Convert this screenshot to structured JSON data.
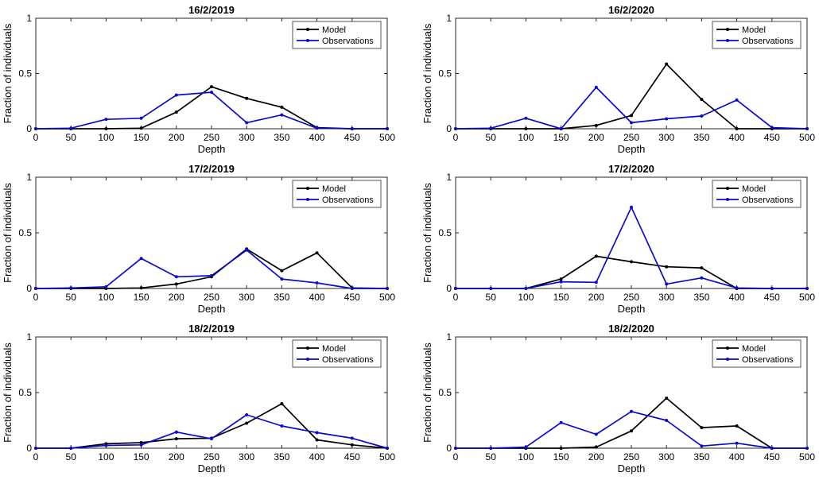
{
  "chart_data": [
    {
      "type": "line",
      "title": "16/2/2019",
      "xlabel": "Depth",
      "ylabel": "Fraction of individuals",
      "xlim": [
        0,
        500
      ],
      "ylim": [
        0,
        1
      ],
      "x": [
        0,
        50,
        100,
        150,
        200,
        250,
        300,
        350,
        400,
        450,
        500
      ],
      "xticks": [
        "0",
        "50",
        "100",
        "150",
        "200",
        "250",
        "300",
        "350",
        "400",
        "450",
        "500"
      ],
      "yticks": [
        "0",
        "0.5",
        "1"
      ],
      "legend_position": "top-right",
      "series": [
        {
          "name": "Model",
          "color": "#000000",
          "values": [
            0,
            0,
            0,
            0.005,
            0.15,
            0.38,
            0.275,
            0.195,
            0.01,
            0,
            0
          ]
        },
        {
          "name": "Observations",
          "color": "#0a0acc",
          "values": [
            0,
            0.005,
            0.085,
            0.095,
            0.305,
            0.33,
            0.055,
            0.125,
            0.005,
            0,
            0
          ]
        }
      ]
    },
    {
      "type": "line",
      "title": "16/2/2020",
      "xlabel": "Depth",
      "ylabel": "Fraction of individuals",
      "xlim": [
        0,
        500
      ],
      "ylim": [
        0,
        1
      ],
      "x": [
        0,
        50,
        100,
        150,
        200,
        250,
        300,
        350,
        400,
        450,
        500
      ],
      "xticks": [
        "0",
        "50",
        "100",
        "150",
        "200",
        "250",
        "300",
        "350",
        "400",
        "450",
        "500"
      ],
      "yticks": [
        "0",
        "0.5",
        "1"
      ],
      "legend_position": "top-right",
      "series": [
        {
          "name": "Model",
          "color": "#000000",
          "values": [
            0,
            0,
            0,
            0,
            0.03,
            0.12,
            0.585,
            0.265,
            0,
            0,
            0
          ]
        },
        {
          "name": "Observations",
          "color": "#0a0acc",
          "values": [
            0,
            0.005,
            0.095,
            0,
            0.375,
            0.055,
            0.09,
            0.115,
            0.26,
            0.01,
            0
          ]
        }
      ]
    },
    {
      "type": "line",
      "title": "17/2/2019",
      "xlabel": "Depth",
      "ylabel": "Fraction of individuals",
      "xlim": [
        0,
        500
      ],
      "ylim": [
        0,
        1
      ],
      "x": [
        0,
        50,
        100,
        150,
        200,
        250,
        300,
        350,
        400,
        450,
        500
      ],
      "xticks": [
        "0",
        "50",
        "100",
        "150",
        "200",
        "250",
        "300",
        "350",
        "400",
        "450",
        "500"
      ],
      "yticks": [
        "0",
        "0.5",
        "1"
      ],
      "legend_position": "top-right",
      "series": [
        {
          "name": "Model",
          "color": "#000000",
          "values": [
            0,
            0,
            0,
            0.005,
            0.04,
            0.105,
            0.355,
            0.16,
            0.32,
            0.005,
            0
          ]
        },
        {
          "name": "Observations",
          "color": "#0a0acc",
          "values": [
            0,
            0.005,
            0.015,
            0.27,
            0.105,
            0.115,
            0.345,
            0.085,
            0.05,
            0,
            0
          ]
        }
      ]
    },
    {
      "type": "line",
      "title": "17/2/2020",
      "xlabel": "Depth",
      "ylabel": "Fraction of individuals",
      "xlim": [
        0,
        500
      ],
      "ylim": [
        0,
        1
      ],
      "x": [
        0,
        50,
        100,
        150,
        200,
        250,
        300,
        350,
        400,
        450,
        500
      ],
      "xticks": [
        "0",
        "50",
        "100",
        "150",
        "200",
        "250",
        "300",
        "350",
        "400",
        "450",
        "500"
      ],
      "yticks": [
        "0",
        "0.5",
        "1"
      ],
      "legend_position": "top-right",
      "series": [
        {
          "name": "Model",
          "color": "#000000",
          "values": [
            0,
            0,
            0,
            0.085,
            0.29,
            0.24,
            0.195,
            0.185,
            0,
            0,
            0
          ]
        },
        {
          "name": "Observations",
          "color": "#0a0acc",
          "values": [
            0,
            0,
            0,
            0.06,
            0.055,
            0.73,
            0.04,
            0.095,
            0.005,
            0,
            0
          ]
        }
      ]
    },
    {
      "type": "line",
      "title": "18/2/2019",
      "xlabel": "Depth",
      "ylabel": "Fraction of individuals",
      "xlim": [
        0,
        500
      ],
      "ylim": [
        0,
        1
      ],
      "x": [
        0,
        50,
        100,
        150,
        200,
        250,
        300,
        350,
        400,
        450,
        500
      ],
      "xticks": [
        "0",
        "50",
        "100",
        "150",
        "200",
        "250",
        "300",
        "350",
        "400",
        "450",
        "500"
      ],
      "yticks": [
        "0",
        "0.5",
        "1"
      ],
      "legend_position": "top-right",
      "series": [
        {
          "name": "Model",
          "color": "#000000",
          "values": [
            0,
            0,
            0.04,
            0.05,
            0.085,
            0.09,
            0.225,
            0.4,
            0.075,
            0.03,
            0
          ]
        },
        {
          "name": "Observations",
          "color": "#0a0acc",
          "values": [
            0,
            0,
            0.025,
            0.03,
            0.145,
            0.085,
            0.3,
            0.2,
            0.14,
            0.09,
            0
          ]
        }
      ]
    },
    {
      "type": "line",
      "title": "18/2/2020",
      "xlabel": "Depth",
      "ylabel": "Fraction of individuals",
      "xlim": [
        0,
        500
      ],
      "ylim": [
        0,
        1
      ],
      "x": [
        0,
        50,
        100,
        150,
        200,
        250,
        300,
        350,
        400,
        450,
        500
      ],
      "xticks": [
        "0",
        "50",
        "100",
        "150",
        "200",
        "250",
        "300",
        "350",
        "400",
        "450",
        "500"
      ],
      "yticks": [
        "0",
        "0.5",
        "1"
      ],
      "legend_position": "top-right",
      "series": [
        {
          "name": "Model",
          "color": "#000000",
          "values": [
            0,
            0,
            0,
            0,
            0.01,
            0.155,
            0.45,
            0.185,
            0.2,
            0,
            0
          ]
        },
        {
          "name": "Observations",
          "color": "#0a0acc",
          "values": [
            0,
            0,
            0.01,
            0.23,
            0.125,
            0.33,
            0.25,
            0.02,
            0.045,
            0,
            0
          ]
        }
      ]
    }
  ]
}
